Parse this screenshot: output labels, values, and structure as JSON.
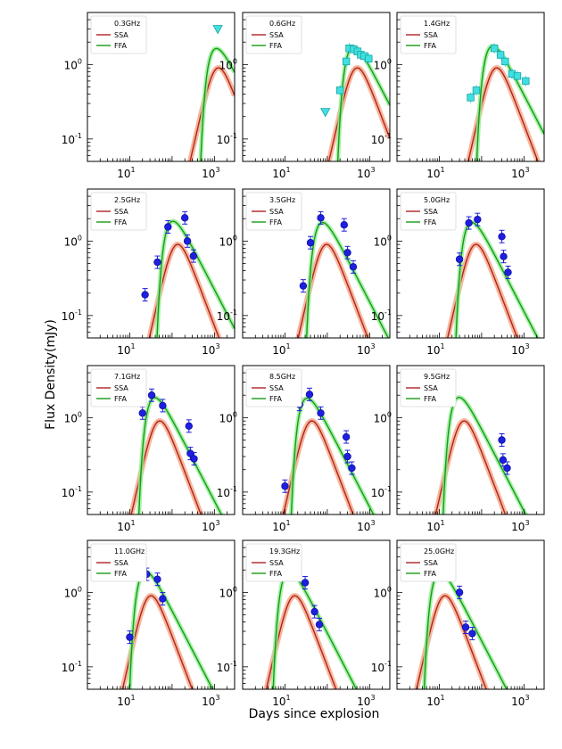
{
  "figure": {
    "ylabel": "Flux Density(mJy)",
    "xlabel": "Days since explosion",
    "legend_labels": [
      "SSA",
      "FFA"
    ],
    "colors": {
      "ssa": "#b22222",
      "ssa_band": "#f4a582",
      "ffa": "#1a9a1a",
      "ffa_band": "#90ee90",
      "detection": "#1f1fe0",
      "upper_limit": "#40e0e0",
      "error_bar": "#1f1fe0"
    }
  },
  "chart_data": [
    {
      "type": "line",
      "title": "0.3GHz",
      "xscale": "log",
      "yscale": "log",
      "xlim": [
        1,
        3000
      ],
      "ylim": [
        0.05,
        5
      ],
      "xticks": [
        "10^1",
        "10^3"
      ],
      "yticks": [
        "10^-1",
        "10^0"
      ],
      "legend_position": "top-left",
      "model_peak": {
        "ssa": {
          "t": 1100,
          "s": 1.75,
          "rise": 2.5
        },
        "ffa": {
          "t": 1150,
          "s": 1.7,
          "tau": 800
        }
      },
      "series": [
        {
          "name": "upper limit",
          "marker": "triangle-down",
          "points": [
            {
              "x": 1200,
              "y": 3.0
            }
          ]
        }
      ]
    },
    {
      "type": "line",
      "title": "0.6GHz",
      "xscale": "log",
      "yscale": "log",
      "xlim": [
        1,
        3000
      ],
      "ylim": [
        0.05,
        5
      ],
      "xticks": [
        "10^1",
        "10^3"
      ],
      "yticks": [
        "10^-1",
        "10^0"
      ],
      "legend_position": "top-left",
      "model_peak": {
        "ssa": {
          "t": 450,
          "s": 1.75,
          "rise": 2.5
        },
        "ffa": {
          "t": 450,
          "s": 1.7,
          "tau": 300
        }
      },
      "series": [
        {
          "name": "upper limit",
          "marker": "triangle-down",
          "points": [
            {
              "x": 90,
              "y": 0.23
            }
          ]
        },
        {
          "name": "detections",
          "marker": "square",
          "points": [
            {
              "x": 200,
              "y": 0.45
            },
            {
              "x": 280,
              "y": 1.1
            },
            {
              "x": 330,
              "y": 1.65
            },
            {
              "x": 420,
              "y": 1.6
            },
            {
              "x": 520,
              "y": 1.5
            },
            {
              "x": 620,
              "y": 1.35
            },
            {
              "x": 750,
              "y": 1.3
            },
            {
              "x": 950,
              "y": 1.2
            }
          ]
        }
      ]
    },
    {
      "type": "line",
      "title": "1.4GHz",
      "xscale": "log",
      "yscale": "log",
      "xlim": [
        1,
        3000
      ],
      "ylim": [
        0.05,
        5
      ],
      "xticks": [
        "10^1",
        "10^3"
      ],
      "yticks": [
        "10^-1",
        "10^0"
      ],
      "legend_position": "top-left",
      "model_peak": {
        "ssa": {
          "t": 200,
          "s": 1.75,
          "rise": 2.5
        },
        "ffa": {
          "t": 200,
          "s": 1.7,
          "tau": 130
        }
      },
      "series": [
        {
          "name": "detections",
          "marker": "square",
          "points": [
            {
              "x": 55,
              "y": 0.36
            },
            {
              "x": 75,
              "y": 0.45
            },
            {
              "x": 200,
              "y": 1.65
            },
            {
              "x": 280,
              "y": 1.35
            },
            {
              "x": 360,
              "y": 1.1
            },
            {
              "x": 520,
              "y": 0.75
            },
            {
              "x": 700,
              "y": 0.7
            },
            {
              "x": 1100,
              "y": 0.6
            }
          ]
        }
      ]
    },
    {
      "type": "line",
      "title": "2.5GHz",
      "xscale": "log",
      "yscale": "log",
      "xlim": [
        1,
        3000
      ],
      "ylim": [
        0.05,
        5
      ],
      "xticks": [
        "10^1",
        "10^3"
      ],
      "yticks": [
        "10^-1",
        "10^0"
      ],
      "legend_position": "top-left",
      "model_peak": {
        "ssa": {
          "t": 120,
          "s": 1.75,
          "rise": 2.5
        },
        "ffa": {
          "t": 120,
          "s": 1.7,
          "tau": 75
        }
      },
      "series": [
        {
          "name": "detections",
          "marker": "circle",
          "points": [
            {
              "x": 23,
              "y": 0.19
            },
            {
              "x": 45,
              "y": 0.52
            },
            {
              "x": 80,
              "y": 1.55
            },
            {
              "x": 200,
              "y": 2.05
            },
            {
              "x": 230,
              "y": 1.0
            },
            {
              "x": 320,
              "y": 0.63
            }
          ]
        }
      ]
    },
    {
      "type": "line",
      "title": "3.5GHz",
      "xscale": "log",
      "yscale": "log",
      "xlim": [
        1,
        3000
      ],
      "ylim": [
        0.05,
        5
      ],
      "xticks": [
        "10^1",
        "10^3"
      ],
      "yticks": [
        "10^-1",
        "10^0"
      ],
      "legend_position": "top-left",
      "model_peak": {
        "ssa": {
          "t": 85,
          "s": 1.75,
          "rise": 2.5
        },
        "ffa": {
          "t": 85,
          "s": 1.7,
          "tau": 55
        }
      },
      "series": [
        {
          "name": "detections",
          "marker": "circle",
          "points": [
            {
              "x": 27,
              "y": 0.25
            },
            {
              "x": 40,
              "y": 0.95
            },
            {
              "x": 70,
              "y": 2.05
            },
            {
              "x": 250,
              "y": 1.65
            },
            {
              "x": 300,
              "y": 0.7
            },
            {
              "x": 410,
              "y": 0.45
            }
          ]
        }
      ]
    },
    {
      "type": "line",
      "title": "5.0GHz",
      "xscale": "log",
      "yscale": "log",
      "xlim": [
        1,
        3000
      ],
      "ylim": [
        0.05,
        5
      ],
      "xticks": [
        "10^1",
        "10^3"
      ],
      "yticks": [
        "10^-1",
        "10^0"
      ],
      "legend_position": "top-left",
      "model_peak": {
        "ssa": {
          "t": 65,
          "s": 1.75,
          "rise": 2.5
        },
        "ffa": {
          "t": 65,
          "s": 1.7,
          "tau": 42
        }
      },
      "series": [
        {
          "name": "detections",
          "marker": "circle",
          "points": [
            {
              "x": 30,
              "y": 0.57
            },
            {
              "x": 50,
              "y": 1.75
            },
            {
              "x": 80,
              "y": 1.95
            },
            {
              "x": 300,
              "y": 1.15
            },
            {
              "x": 330,
              "y": 0.62
            },
            {
              "x": 420,
              "y": 0.38
            }
          ]
        }
      ]
    },
    {
      "type": "line",
      "title": "7.1GHz",
      "xscale": "log",
      "yscale": "log",
      "xlim": [
        1,
        3000
      ],
      "ylim": [
        0.05,
        5
      ],
      "xticks": [
        "10^1",
        "10^3"
      ],
      "yticks": [
        "10^-1",
        "10^0"
      ],
      "legend_position": "top-left",
      "model_peak": {
        "ssa": {
          "t": 45,
          "s": 1.75,
          "rise": 2.5
        },
        "ffa": {
          "t": 45,
          "s": 1.7,
          "tau": 28
        }
      },
      "series": [
        {
          "name": "detections",
          "marker": "circle",
          "points": [
            {
              "x": 20,
              "y": 1.15
            },
            {
              "x": 33,
              "y": 2.0
            },
            {
              "x": 60,
              "y": 1.45
            },
            {
              "x": 250,
              "y": 0.77
            },
            {
              "x": 270,
              "y": 0.33
            },
            {
              "x": 330,
              "y": 0.28
            }
          ]
        }
      ]
    },
    {
      "type": "line",
      "title": "8.5GHz",
      "xscale": "log",
      "yscale": "log",
      "xlim": [
        1,
        3000
      ],
      "ylim": [
        0.05,
        5
      ],
      "xticks": [
        "10^1",
        "10^3"
      ],
      "yticks": [
        "10^-1",
        "10^0"
      ],
      "legend_position": "top-left",
      "model_peak": {
        "ssa": {
          "t": 38,
          "s": 1.75,
          "rise": 2.5
        },
        "ffa": {
          "t": 38,
          "s": 1.7,
          "tau": 24
        }
      },
      "series": [
        {
          "name": "detections",
          "marker": "circle",
          "points": [
            {
              "x": 10,
              "y": 0.12
            },
            {
              "x": 22,
              "y": 1.5
            },
            {
              "x": 38,
              "y": 2.05
            },
            {
              "x": 70,
              "y": 1.15
            },
            {
              "x": 280,
              "y": 0.55
            },
            {
              "x": 300,
              "y": 0.3
            },
            {
              "x": 380,
              "y": 0.21
            }
          ]
        }
      ]
    },
    {
      "type": "line",
      "title": "9.5GHz",
      "xscale": "log",
      "yscale": "log",
      "xlim": [
        1,
        3000
      ],
      "ylim": [
        0.05,
        5
      ],
      "xticks": [
        "10^1",
        "10^3"
      ],
      "yticks": [
        "10^-1",
        "10^0"
      ],
      "legend_position": "top-left",
      "model_peak": {
        "ssa": {
          "t": 34,
          "s": 1.75,
          "rise": 2.5
        },
        "ffa": {
          "t": 34,
          "s": 1.7,
          "tau": 21
        }
      },
      "series": [
        {
          "name": "detections",
          "marker": "circle",
          "points": [
            {
              "x": 300,
              "y": 0.5
            },
            {
              "x": 320,
              "y": 0.27
            },
            {
              "x": 400,
              "y": 0.21
            }
          ]
        }
      ]
    },
    {
      "type": "line",
      "title": "11.0GHz",
      "xscale": "log",
      "yscale": "log",
      "xlim": [
        1,
        3000
      ],
      "ylim": [
        0.05,
        5
      ],
      "xticks": [
        "10^1",
        "10^3"
      ],
      "yticks": [
        "10^-1",
        "10^0"
      ],
      "legend_position": "top-left",
      "model_peak": {
        "ssa": {
          "t": 28,
          "s": 1.75,
          "rise": 2.5
        },
        "ffa": {
          "t": 28,
          "s": 1.7,
          "tau": 17
        }
      },
      "series": [
        {
          "name": "detections",
          "marker": "circle",
          "points": [
            {
              "x": 10,
              "y": 0.25
            },
            {
              "x": 25,
              "y": 1.75
            },
            {
              "x": 45,
              "y": 1.5
            },
            {
              "x": 60,
              "y": 0.82
            }
          ]
        }
      ]
    },
    {
      "type": "line",
      "title": "19.3GHz",
      "xscale": "log",
      "yscale": "log",
      "xlim": [
        1,
        3000
      ],
      "ylim": [
        0.05,
        5
      ],
      "xticks": [
        "10^1",
        "10^3"
      ],
      "yticks": [
        "10^-1",
        "10^0"
      ],
      "legend_position": "top-left",
      "model_peak": {
        "ssa": {
          "t": 15,
          "s": 1.75,
          "rise": 2.5
        },
        "ffa": {
          "t": 15,
          "s": 1.7,
          "tau": 9
        }
      },
      "series": [
        {
          "name": "detections",
          "marker": "circle",
          "points": [
            {
              "x": 30,
              "y": 1.35
            },
            {
              "x": 50,
              "y": 0.55
            },
            {
              "x": 65,
              "y": 0.37
            }
          ]
        }
      ]
    },
    {
      "type": "line",
      "title": "25.0GHz",
      "xscale": "log",
      "yscale": "log",
      "xlim": [
        1,
        3000
      ],
      "ylim": [
        0.05,
        5
      ],
      "xticks": [
        "10^1",
        "10^3"
      ],
      "yticks": [
        "10^-1",
        "10^0"
      ],
      "legend_position": "top-left",
      "model_peak": {
        "ssa": {
          "t": 12,
          "s": 1.75,
          "rise": 2.5
        },
        "ffa": {
          "t": 12,
          "s": 1.7,
          "tau": 7.5
        }
      },
      "series": [
        {
          "name": "detections",
          "marker": "circle",
          "points": [
            {
              "x": 30,
              "y": 1.0
            },
            {
              "x": 42,
              "y": 0.34
            },
            {
              "x": 60,
              "y": 0.28
            }
          ]
        }
      ]
    }
  ]
}
